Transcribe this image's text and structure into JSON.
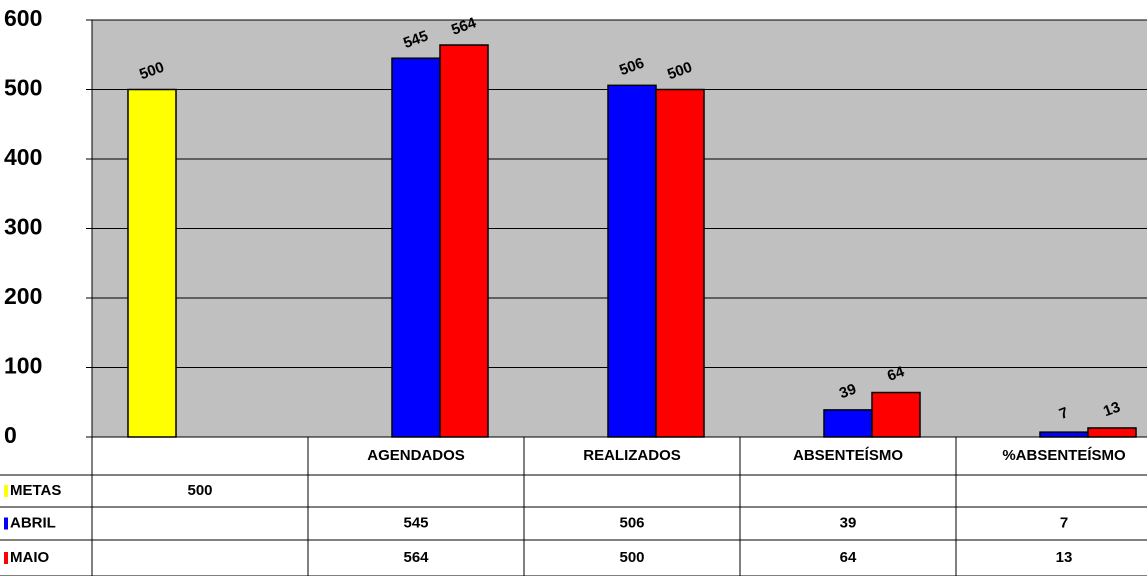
{
  "chart_data": {
    "type": "bar",
    "categories": [
      null,
      "AGENDADOS",
      "REALIZADOS",
      "ABSENTEÍSMO",
      "%ABSENTEÍSMO"
    ],
    "series": [
      {
        "name": "METAS",
        "color": "#ffff00",
        "values": [
          500,
          null,
          null,
          null,
          null
        ]
      },
      {
        "name": "ABRIL",
        "color": "#0000ff",
        "values": [
          null,
          545,
          506,
          39,
          7
        ]
      },
      {
        "name": "MAIO",
        "color": "#ff0000",
        "values": [
          null,
          564,
          500,
          64,
          13
        ]
      }
    ],
    "ylim": [
      0,
      600
    ],
    "yticks": [
      0,
      100,
      200,
      300,
      400,
      500,
      600
    ],
    "grid": true,
    "plot_background": "#c0c0c0"
  }
}
